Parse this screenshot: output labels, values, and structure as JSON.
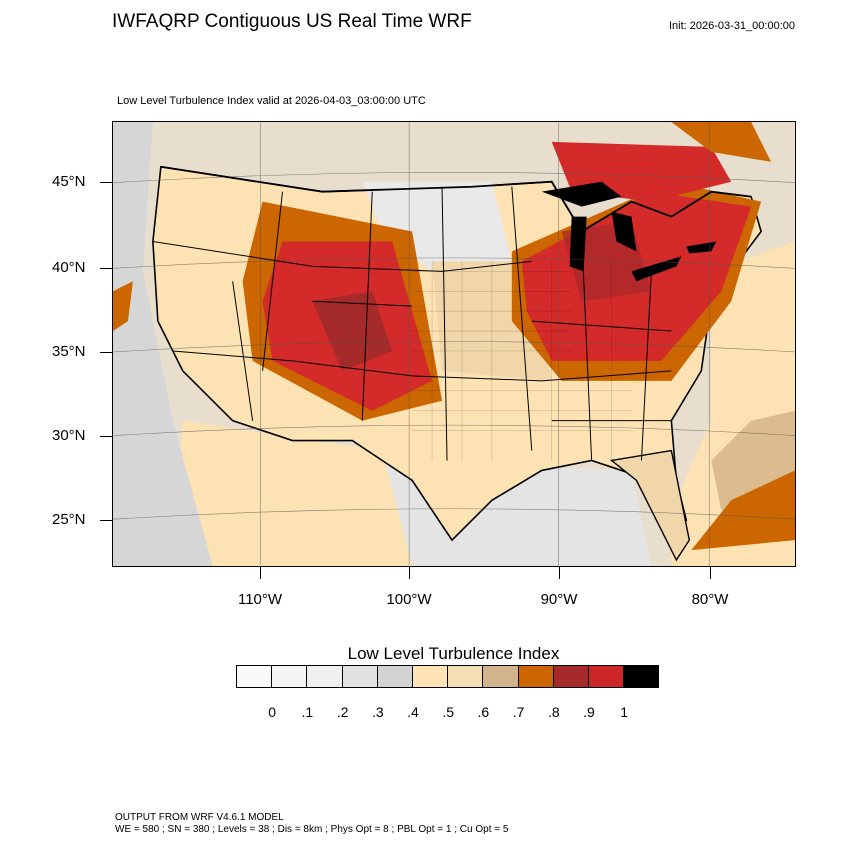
{
  "title": "IWFAQRP Contiguous US Real Time WRF",
  "init": "Init: 2026-03-31_00:00:00",
  "subtitle": "Low Level Turbulence Index valid at 2026-04-03_03:00:00 UTC",
  "map": {
    "lat_labels": [
      "45°N",
      "40°N",
      "35°N",
      "30°N",
      "25°N"
    ],
    "lon_labels": [
      "110°W",
      "100°W",
      "90°W",
      "80°W"
    ],
    "colors": {
      "ocean_gray": "#d9d9d9",
      "light_gray": "#ebebeb",
      "cream": "#fde3b4",
      "tan": "#f0d6a8",
      "dark_tan": "#d3b184",
      "orange": "#cc6600",
      "dark_red": "#a52a2a",
      "red": "#d42a2a",
      "border": "#000000"
    }
  },
  "legend": {
    "title": "Low Level Turbulence Index",
    "colors": [
      "#fafafa",
      "#f5f5f5",
      "#f0f0f0",
      "#e2e2e2",
      "#d3d3d3",
      "#ffe4b5",
      "#f5deb3",
      "#d2b48c",
      "#cd6600",
      "#a52a2a",
      "#cd2626",
      "#000000"
    ],
    "labels": [
      "0",
      ".1",
      ".2",
      ".3",
      ".4",
      ".5",
      ".6",
      ".7",
      ".8",
      ".9",
      "1"
    ]
  },
  "footer": {
    "line1": "OUTPUT FROM WRF V4.6.1 MODEL",
    "line2": "WE = 580 ; SN = 380 ; Levels = 38 ; Dis = 8km ; Phys Opt = 8 ; PBL Opt = 1 ; Cu Opt = 5"
  }
}
